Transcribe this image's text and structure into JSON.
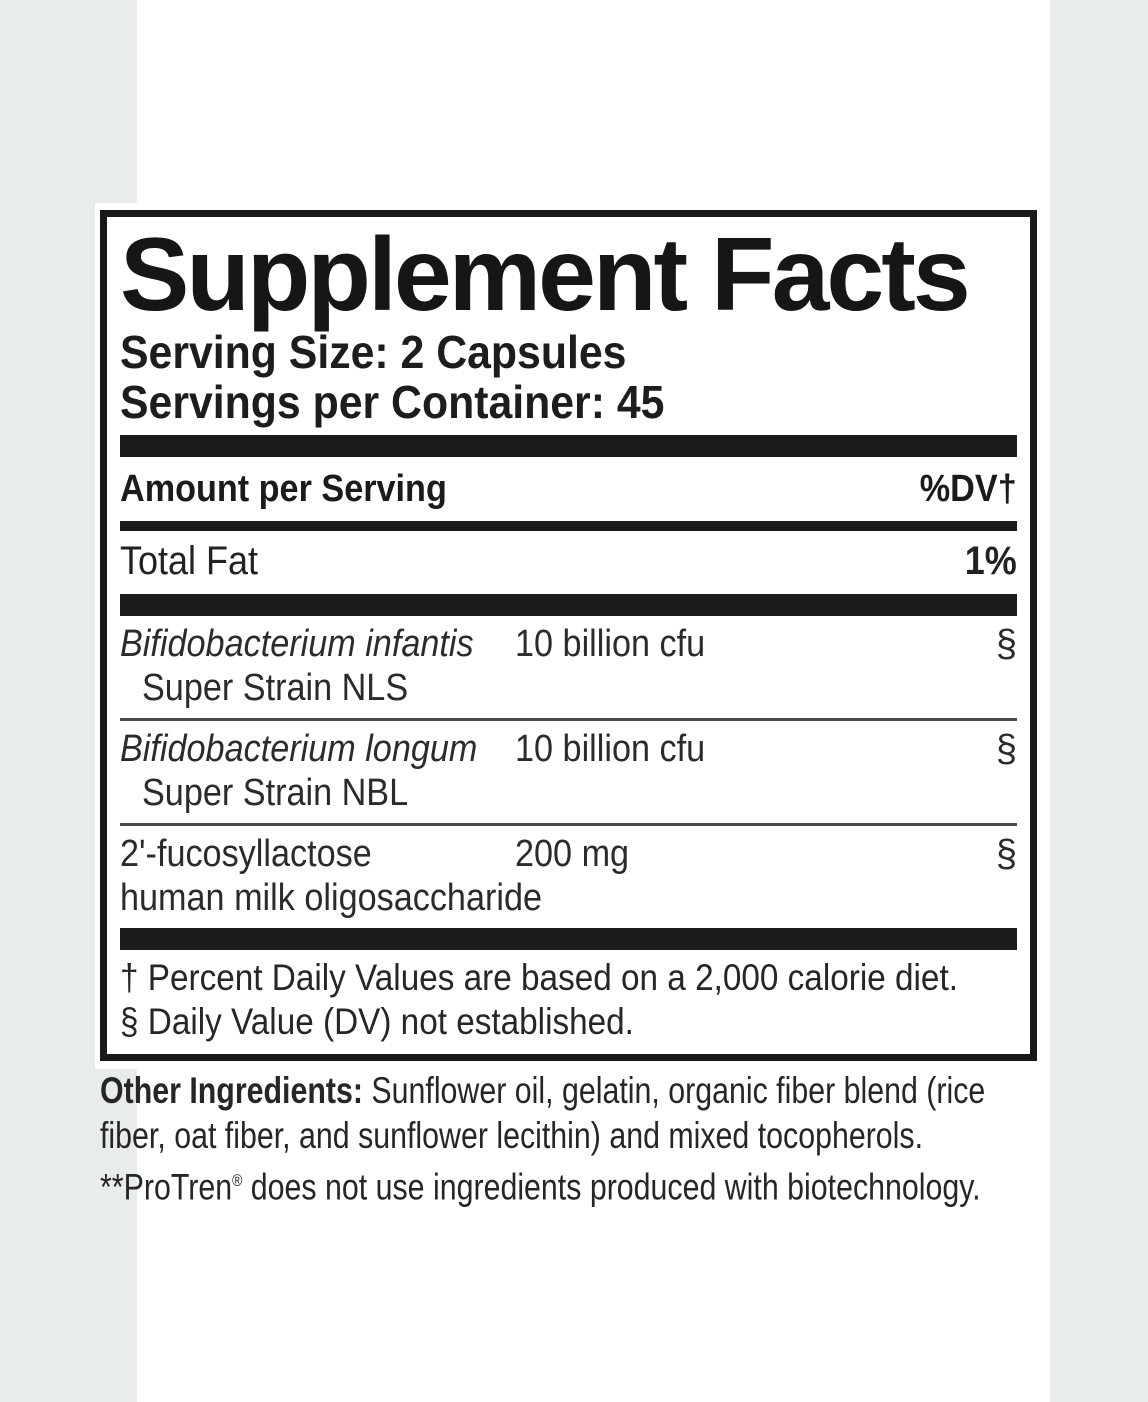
{
  "page": {
    "band_color": "#e8edec",
    "panel_background": "#ffffff",
    "ink_color": "#1b1b1b"
  },
  "label": {
    "title": "Supplement Facts",
    "serving_size": "Serving Size: 2 Capsules",
    "servings_per_container": "Servings per Container: 45",
    "header": {
      "amount": "Amount per Serving",
      "dv": "%DV†"
    },
    "total_fat": {
      "name": "Total Fat",
      "dv": "1%"
    },
    "rows": [
      {
        "name": "Bifidobacterium infantis",
        "sub": "Super Strain NLS",
        "amount": "10 billion cfu",
        "dv": "§"
      },
      {
        "name": "Bifidobacterium longum",
        "sub": "Super Strain NBL",
        "amount": "10 billion cfu",
        "dv": "§"
      },
      {
        "name": "2'-fucosyllactose",
        "sub": "human milk oligosaccharide",
        "amount": "200 mg",
        "dv": "§"
      }
    ],
    "footnotes": [
      "† Percent Daily Values are based on a 2,000 calorie diet.",
      "§ Daily Value (DV) not established."
    ]
  },
  "other_ingredients": {
    "lead": "Other Ingredients:",
    "line1_rest": " Sunflower oil, gelatin, organic fiber blend (rice",
    "line2": "fiber, oat fiber, and sunflower lecithin) and mixed tocopherols.",
    "line3_pre": "**ProTren",
    "line3_mark": "®",
    "line3_post": " does not use ingredients produced with biotechnology."
  }
}
